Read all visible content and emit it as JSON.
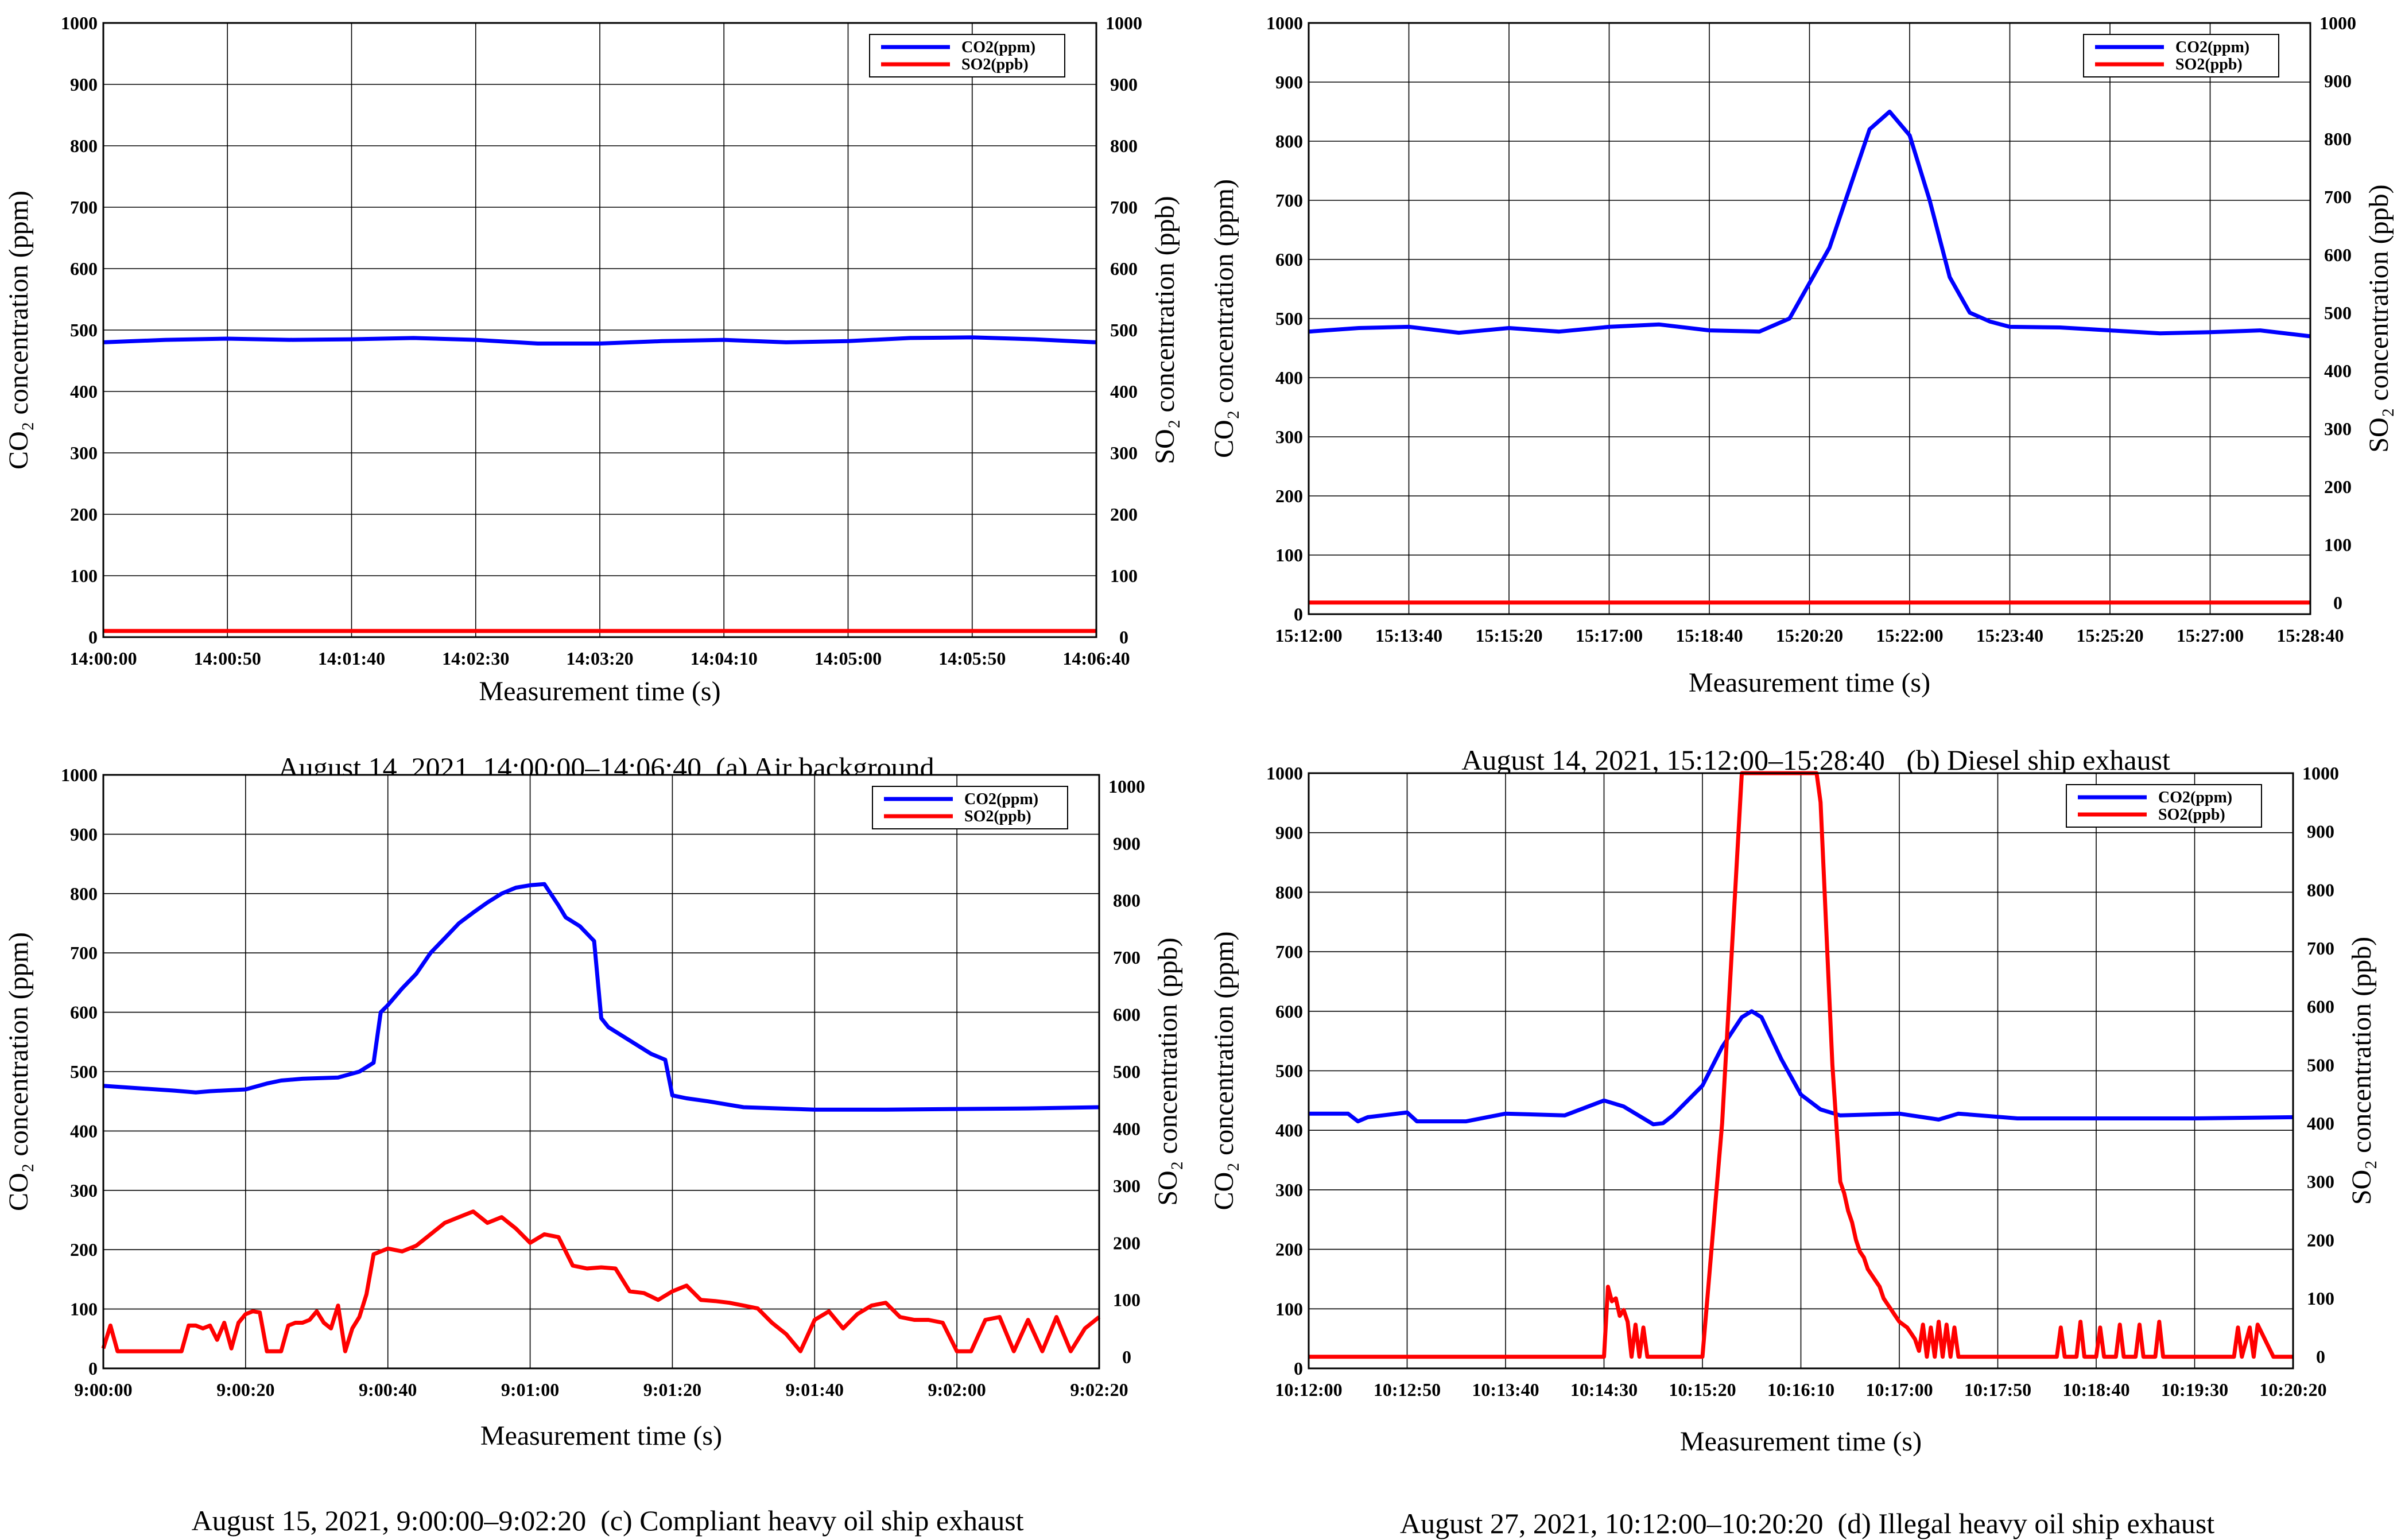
{
  "figure": {
    "colors": {
      "co2": "#0000ff",
      "so2": "#ff0000",
      "grid": "#000000",
      "background": "#ffffff"
    }
  },
  "chart_data": [
    {
      "id": "a",
      "type": "line",
      "caption_date": "August 14, 2021, 14:00:00–14:06:40",
      "caption_label": "(a) Air background",
      "xlabel": "Measurement time (s)",
      "ylabel_left": "CO₂  concentration (ppm)",
      "ylabel_right": "SO₂  concentration (ppb)",
      "x_ticks": [
        "14:00:00",
        "14:00:50",
        "14:01:40",
        "14:02:30",
        "14:03:20",
        "14:04:10",
        "14:05:00",
        "14:05:50",
        "14:06:40"
      ],
      "xlim": [
        0,
        400
      ],
      "ylim_left": [
        0,
        1000
      ],
      "ylim_right": [
        0,
        1000
      ],
      "y_ticks_left": [
        "0",
        "100",
        "200",
        "300",
        "400",
        "500",
        "600",
        "700",
        "800",
        "900",
        "1000"
      ],
      "y_ticks_right": [
        "0",
        "100",
        "200",
        "300",
        "400",
        "500",
        "600",
        "700",
        "800",
        "900",
        "1000"
      ],
      "legend": [
        "CO2(ppm)",
        "SO2(ppb)"
      ],
      "legend_position": "top-right",
      "grid": true,
      "series": [
        {
          "name": "CO2(ppm)",
          "axis": "left",
          "color": "#0000ff",
          "x": [
            0,
            25,
            50,
            75,
            100,
            125,
            150,
            175,
            200,
            225,
            250,
            275,
            300,
            325,
            350,
            375,
            400
          ],
          "y": [
            480,
            484,
            486,
            484,
            485,
            487,
            484,
            478,
            478,
            482,
            484,
            480,
            482,
            487,
            488,
            485,
            480
          ]
        },
        {
          "name": "SO2(ppb)",
          "axis": "right",
          "color": "#ff0000",
          "x": [
            0,
            50,
            100,
            150,
            200,
            250,
            300,
            350,
            400
          ],
          "y": [
            10,
            10,
            10,
            10,
            10,
            10,
            10,
            10,
            10
          ]
        }
      ]
    },
    {
      "id": "b",
      "type": "line",
      "caption_date": "August 14, 2021, 15:12:00–15:28:40",
      "caption_label": "(b) Diesel ship exhaust",
      "xlabel": "Measurement time (s)",
      "ylabel_left": "CO₂  concentration (ppm)",
      "ylabel_right": "SO₂  concentration (ppb)",
      "x_ticks": [
        "15:12:00",
        "15:13:40",
        "15:15:20",
        "15:17:00",
        "15:18:40",
        "15:20:20",
        "15:22:00",
        "15:23:40",
        "15:25:20",
        "15:27:00",
        "15:28:40"
      ],
      "xlim": [
        0,
        1000
      ],
      "ylim_left": [
        0,
        1000
      ],
      "ylim_right": [
        -20,
        1000
      ],
      "y_ticks_left": [
        "0",
        "100",
        "200",
        "300",
        "400",
        "500",
        "600",
        "700",
        "800",
        "900",
        "1000"
      ],
      "y_ticks_right": [
        "0",
        "100",
        "200",
        "300",
        "400",
        "500",
        "600",
        "700",
        "800",
        "900",
        "1000"
      ],
      "legend": [
        "CO2(ppm)",
        "SO2(ppb)"
      ],
      "legend_position": "top-right",
      "grid": true,
      "series": [
        {
          "name": "CO2(ppm)",
          "axis": "left",
          "color": "#0000ff",
          "x": [
            0,
            50,
            100,
            150,
            200,
            250,
            300,
            350,
            400,
            450,
            480,
            520,
            540,
            560,
            580,
            600,
            620,
            640,
            660,
            680,
            700,
            750,
            800,
            850,
            900,
            950,
            1000
          ],
          "y": [
            478,
            484,
            486,
            476,
            484,
            478,
            486,
            490,
            480,
            478,
            500,
            620,
            720,
            820,
            850,
            810,
            700,
            570,
            510,
            495,
            486,
            485,
            480,
            475,
            477,
            480,
            470
          ]
        },
        {
          "name": "SO2(ppb)",
          "axis": "right",
          "color": "#ff0000",
          "x": [
            0,
            200,
            400,
            600,
            800,
            1000
          ],
          "y": [
            0,
            0,
            0,
            0,
            0,
            0
          ]
        }
      ]
    },
    {
      "id": "c",
      "type": "line",
      "caption_date": "August 15, 2021, 9:00:00–9:02:20",
      "caption_label": "(c) Compliant heavy oil ship exhaust",
      "xlabel": "Measurement time (s)",
      "ylabel_left": "CO₂  concentration (ppm)",
      "ylabel_right": "SO₂  concentration (ppb)",
      "x_ticks": [
        "9:00:00",
        "9:00:20",
        "9:00:40",
        "9:01:00",
        "9:01:20",
        "9:01:40",
        "9:02:00",
        "9:02:20"
      ],
      "xlim": [
        0,
        140
      ],
      "ylim_left": [
        0,
        1000
      ],
      "ylim_right": [
        -20,
        1020
      ],
      "y_ticks_left": [
        "0",
        "100",
        "200",
        "300",
        "400",
        "500",
        "600",
        "700",
        "800",
        "900",
        "1000"
      ],
      "y_ticks_right": [
        "0",
        "100",
        "200",
        "300",
        "400",
        "500",
        "600",
        "700",
        "800",
        "900",
        "1000"
      ],
      "legend": [
        "CO2(ppm)",
        "SO2(ppb)"
      ],
      "legend_position": "top-right",
      "grid": true,
      "series": [
        {
          "name": "CO2(ppm)",
          "axis": "left",
          "color": "#0000ff",
          "x": [
            0,
            5,
            10,
            13,
            15,
            20,
            23,
            25,
            28,
            33,
            36,
            38,
            39,
            40,
            42,
            44,
            46,
            48,
            50,
            52,
            54,
            56,
            58,
            60,
            62,
            64,
            65,
            67,
            69,
            70,
            71,
            73,
            75,
            77,
            79,
            80,
            82,
            85,
            90,
            95,
            100,
            110,
            120,
            130,
            140
          ],
          "y": [
            476,
            472,
            468,
            465,
            467,
            470,
            480,
            485,
            488,
            490,
            500,
            515,
            600,
            612,
            640,
            665,
            700,
            725,
            750,
            768,
            785,
            800,
            810,
            814,
            816,
            780,
            760,
            745,
            720,
            590,
            575,
            560,
            545,
            530,
            520,
            460,
            455,
            450,
            440,
            438,
            436,
            436,
            437,
            438,
            440
          ]
        },
        {
          "name": "SO2(ppb)",
          "axis": "right",
          "color": "#ff0000",
          "x": [
            0,
            1,
            2,
            3,
            4,
            5,
            6,
            7,
            8,
            9,
            10,
            11,
            12,
            13,
            14,
            15,
            16,
            17,
            18,
            19,
            20,
            21,
            22,
            23,
            24,
            25,
            26,
            27,
            28,
            29,
            30,
            31,
            32,
            33,
            34,
            35,
            36,
            37,
            38,
            39,
            40,
            42,
            44,
            46,
            48,
            50,
            52,
            54,
            56,
            58,
            60,
            62,
            64,
            66,
            68,
            70,
            72,
            74,
            76,
            78,
            80,
            82,
            84,
            86,
            88,
            90,
            92,
            94,
            96,
            98,
            100,
            102,
            104,
            106,
            108,
            110,
            112,
            114,
            116,
            118,
            120,
            122,
            124,
            126,
            128,
            130,
            132,
            134,
            136,
            138,
            140
          ],
          "y": [
            15,
            55,
            10,
            10,
            10,
            10,
            10,
            10,
            10,
            10,
            10,
            10,
            55,
            55,
            50,
            55,
            30,
            60,
            15,
            60,
            75,
            80,
            78,
            10,
            10,
            10,
            55,
            60,
            60,
            65,
            80,
            60,
            50,
            90,
            10,
            50,
            70,
            110,
            180,
            185,
            190,
            185,
            195,
            215,
            235,
            245,
            255,
            235,
            245,
            225,
            200,
            215,
            210,
            160,
            155,
            157,
            155,
            115,
            112,
            100,
            115,
            125,
            100,
            98,
            95,
            90,
            85,
            60,
            40,
            10,
            65,
            80,
            50,
            75,
            90,
            95,
            70,
            65,
            65,
            60,
            10,
            10,
            65,
            70,
            10,
            65,
            10,
            70,
            10,
            50,
            70
          ]
        }
      ]
    },
    {
      "id": "d",
      "type": "line",
      "caption_date": "August 27, 2021, 10:12:00–10:20:20",
      "caption_label": "(d) Illegal heavy oil ship exhaust",
      "xlabel": "Measurement time (s)",
      "ylabel_left": "CO₂  concentration (ppm)",
      "ylabel_right": "SO₂  concentration (ppb)",
      "x_ticks": [
        "10:12:00",
        "10:12:50",
        "10:13:40",
        "10:14:30",
        "10:15:20",
        "10:16:10",
        "10:17:00",
        "10:17:50",
        "10:18:40",
        "10:19:30",
        "10:20:20"
      ],
      "xlim": [
        0,
        500
      ],
      "ylim_left": [
        0,
        1000
      ],
      "ylim_right": [
        -20,
        1000
      ],
      "y_ticks_left": [
        "0",
        "100",
        "200",
        "300",
        "400",
        "500",
        "600",
        "700",
        "800",
        "900",
        "1000"
      ],
      "y_ticks_right": [
        "0",
        "100",
        "200",
        "300",
        "400",
        "500",
        "600",
        "700",
        "800",
        "900",
        "1000"
      ],
      "legend": [
        "CO2(ppm)",
        "SO2(ppb)"
      ],
      "legend_position": "top-right",
      "grid": true,
      "series": [
        {
          "name": "CO2(ppm)",
          "axis": "left",
          "color": "#0000ff",
          "x": [
            0,
            20,
            25,
            30,
            50,
            55,
            80,
            100,
            130,
            150,
            160,
            175,
            180,
            185,
            200,
            210,
            220,
            225,
            230,
            240,
            250,
            260,
            270,
            300,
            320,
            330,
            360,
            400,
            450,
            500
          ],
          "y": [
            428,
            428,
            415,
            422,
            430,
            415,
            415,
            428,
            425,
            450,
            440,
            410,
            412,
            425,
            475,
            540,
            590,
            600,
            590,
            520,
            460,
            435,
            425,
            428,
            418,
            428,
            420,
            420,
            420,
            422
          ]
        },
        {
          "name": "SO2(ppb)",
          "axis": "right",
          "color": "#ff0000",
          "x": [
            0,
            50,
            100,
            150,
            152,
            154,
            156,
            158,
            160,
            162,
            164,
            166,
            168,
            170,
            172,
            176,
            180,
            184,
            186,
            188,
            190,
            200,
            210,
            220,
            225,
            230,
            234,
            238,
            240,
            242,
            244,
            246,
            248,
            250,
            252,
            254,
            256,
            258,
            260,
            262,
            264,
            266,
            268,
            270,
            272,
            274,
            276,
            278,
            280,
            282,
            284,
            286,
            288,
            290,
            292,
            294,
            296,
            298,
            300,
            302,
            304,
            306,
            308,
            310,
            312,
            314,
            316,
            318,
            320,
            322,
            324,
            326,
            328,
            330,
            340,
            350,
            360,
            370,
            380,
            382,
            384,
            390,
            392,
            394,
            400,
            402,
            404,
            410,
            412,
            414,
            420,
            422,
            424,
            430,
            432,
            434,
            440,
            450,
            460,
            470,
            472,
            474,
            478,
            480,
            482,
            490,
            500
          ],
          "y": [
            0,
            0,
            0,
            0,
            120,
            95,
            100,
            70,
            80,
            60,
            0,
            55,
            0,
            50,
            0,
            0,
            0,
            0,
            0,
            0,
            0,
            0,
            400,
            1000,
            1000,
            1000,
            1000,
            1000,
            1000,
            1000,
            1000,
            1000,
            1000,
            1000,
            1000,
            1000,
            1000,
            1000,
            950,
            800,
            650,
            500,
            400,
            300,
            280,
            250,
            230,
            200,
            180,
            170,
            150,
            140,
            130,
            120,
            100,
            90,
            80,
            70,
            60,
            55,
            50,
            40,
            30,
            10,
            55,
            0,
            50,
            0,
            60,
            0,
            55,
            0,
            50,
            0,
            0,
            0,
            0,
            0,
            0,
            50,
            0,
            0,
            60,
            0,
            0,
            50,
            0,
            0,
            55,
            0,
            0,
            55,
            0,
            0,
            60,
            0,
            0,
            0,
            0,
            0,
            50,
            0,
            50,
            0,
            55,
            0,
            0
          ]
        }
      ]
    }
  ]
}
